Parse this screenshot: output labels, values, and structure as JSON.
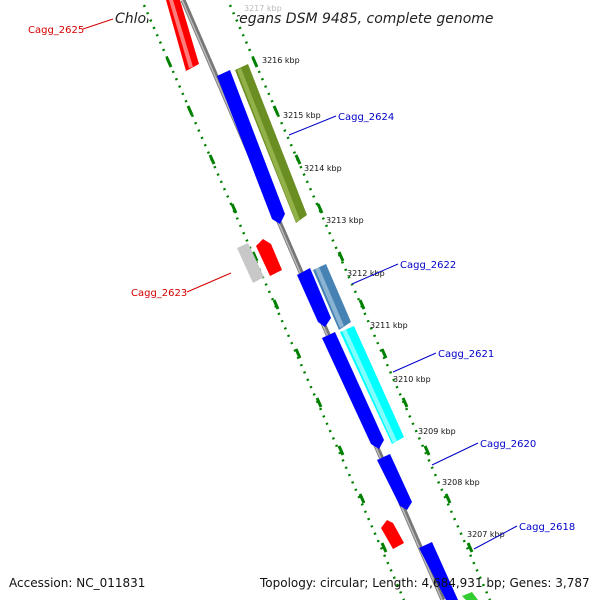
{
  "title": "Chloroflexus aggregans DSM 9485, complete genome",
  "footer": {
    "accession": "Accession: NC_011831",
    "summary": "Topology: circular; Length: 4,684,931 bp; Genes: 3,787"
  },
  "ticks": [
    "3217 kbp",
    "3216 kbp",
    "3215 kbp",
    "3214 kbp",
    "3213 kbp",
    "3212 kbp",
    "3211 kbp",
    "3210 kbp",
    "3209 kbp",
    "3208 kbp",
    "3207 kbp"
  ],
  "gene_labels": [
    {
      "text": "Cagg_2625",
      "color": "#d40000"
    },
    {
      "text": "Cagg_2624",
      "color": "#0000c8"
    },
    {
      "text": "Cagg_2622",
      "color": "#0000c8"
    },
    {
      "text": "Cagg_2623",
      "color": "#d40000"
    },
    {
      "text": "Cagg_2621",
      "color": "#0000c8"
    },
    {
      "text": "Cagg_2620",
      "color": "#0000c8"
    },
    {
      "text": "Cagg_2618",
      "color": "#0000c8"
    }
  ],
  "colors": {
    "backbone": "#999999",
    "forward_gene": "#0000ff",
    "reverse_gene": "#ff0000",
    "olive_feature": "#6b8e23",
    "steelblue_feature": "#4682b4",
    "cyan_feature": "#00ffff",
    "grey_feature": "#cccccc",
    "green_feature": "#33cc33",
    "tick_marks": "#008000",
    "label_line_forward": "#0000c8",
    "label_line_reverse": "#d40000"
  }
}
